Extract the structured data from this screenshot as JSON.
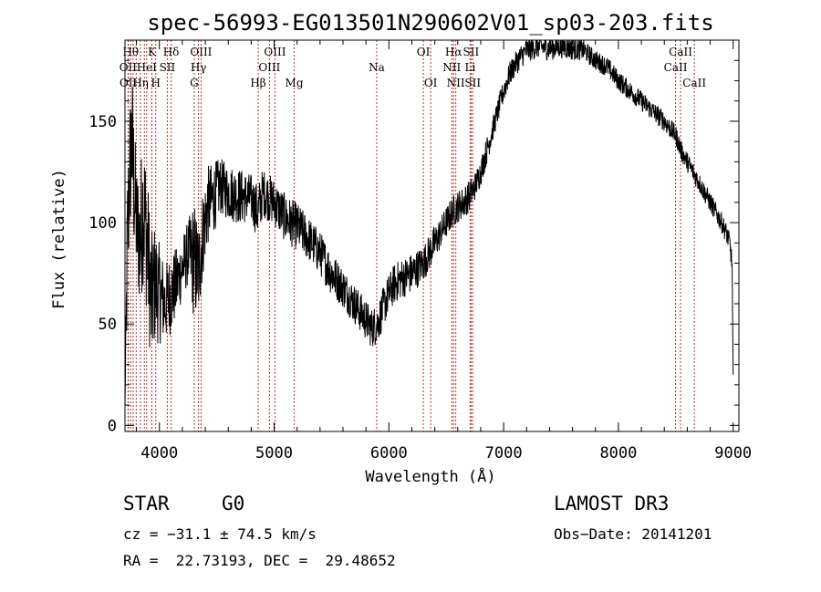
{
  "chart_data": {
    "type": "line",
    "title": "spec-56993-EG013501N290602V01_sp03-203.fits",
    "xlabel": "Wavelength (Å)",
    "ylabel": "Flux (relative)",
    "xlim": [
      3700,
      9050
    ],
    "ylim": [
      -3,
      190
    ],
    "xticks": [
      4000,
      5000,
      6000,
      7000,
      8000,
      9000
    ],
    "yticks": [
      0,
      50,
      100,
      150
    ],
    "xminor_step": 200,
    "yminor_step": 10,
    "series": [
      {
        "name": "flux",
        "x": [
          3700,
          3720,
          3740,
          3760,
          3780,
          3800,
          3830,
          3860,
          3900,
          3930,
          3960,
          4000,
          4050,
          4100,
          4150,
          4200,
          4250,
          4300,
          4340,
          4380,
          4420,
          4470,
          4530,
          4600,
          4700,
          4800,
          4860,
          4900,
          5000,
          5100,
          5200,
          5300,
          5400,
          5500,
          5600,
          5700,
          5800,
          5850,
          5900,
          5950,
          6000,
          6050,
          6100,
          6200,
          6300,
          6350,
          6400,
          6450,
          6500,
          6550,
          6600,
          6650,
          6700,
          6750,
          6800,
          6850,
          6900,
          6950,
          7000,
          7050,
          7100,
          7150,
          7200,
          7250,
          7300,
          7400,
          7500,
          7600,
          7700,
          7800,
          7900,
          8000,
          8100,
          8200,
          8300,
          8400,
          8500,
          8550,
          8600,
          8650,
          8700,
          8750,
          8800,
          8850,
          8900,
          8940,
          8970,
          8990,
          9000
        ],
        "y": [
          10,
          85,
          125,
          140,
          118,
          100,
          90,
          110,
          85,
          60,
          70,
          65,
          60,
          65,
          70,
          78,
          85,
          82,
          75,
          95,
          108,
          112,
          118,
          115,
          113,
          112,
          105,
          115,
          110,
          102,
          98,
          92,
          85,
          75,
          68,
          60,
          52,
          48,
          50,
          58,
          65,
          70,
          72,
          75,
          80,
          85,
          90,
          95,
          100,
          105,
          108,
          110,
          113,
          118,
          125,
          135,
          145,
          155,
          165,
          173,
          178,
          182,
          185,
          186,
          187,
          186,
          187,
          186,
          185,
          180,
          177,
          170,
          165,
          160,
          155,
          150,
          143,
          135,
          130,
          125,
          120,
          115,
          110,
          105,
          100,
          95,
          90,
          80,
          25
        ],
        "noise": [
          0,
          40,
          35,
          40,
          35,
          30,
          35,
          40,
          35,
          35,
          30,
          25,
          20,
          20,
          18,
          16,
          16,
          30,
          25,
          22,
          20,
          18,
          14,
          14,
          14,
          12,
          14,
          12,
          12,
          12,
          12,
          11,
          11,
          11,
          10,
          10,
          10,
          10,
          10,
          10,
          10,
          10,
          10,
          10,
          9,
          9,
          9,
          8,
          8,
          8,
          8,
          8,
          8,
          7,
          7,
          7,
          6,
          6,
          6,
          6,
          6,
          6,
          6,
          6,
          6,
          6,
          6,
          6,
          5,
          5,
          5,
          5,
          5,
          5,
          5,
          5,
          5,
          5,
          5,
          5,
          5,
          5,
          5,
          5,
          5,
          5,
          5,
          5,
          0
        ]
      }
    ],
    "lines": [
      {
        "w": 3727,
        "label": "OII",
        "row": 1
      },
      {
        "w": 3729,
        "label": "OII",
        "row": 2
      },
      {
        "w": 3750,
        "label": "Hθ",
        "row": 0
      },
      {
        "w": 3771,
        "label": "",
        "row": 0
      },
      {
        "w": 3798,
        "label": "",
        "row": 0
      },
      {
        "w": 3835,
        "label": "Hη",
        "row": 2
      },
      {
        "w": 3869,
        "label": "",
        "row": 0
      },
      {
        "w": 3889,
        "label": "HeI",
        "row": 1
      },
      {
        "w": 3934,
        "label": "K",
        "row": 0
      },
      {
        "w": 3968,
        "label": "H",
        "row": 2
      },
      {
        "w": 4069,
        "label": "SII",
        "row": 1
      },
      {
        "w": 4102,
        "label": "Hδ",
        "row": 0
      },
      {
        "w": 4304,
        "label": "G",
        "row": 2
      },
      {
        "w": 4341,
        "label": "Hγ",
        "row": 1
      },
      {
        "w": 4363,
        "label": "OIII",
        "row": 0
      },
      {
        "w": 4861,
        "label": "Hβ",
        "row": 2
      },
      {
        "w": 4959,
        "label": "OIII",
        "row": 1
      },
      {
        "w": 5007,
        "label": "OIII",
        "row": 0
      },
      {
        "w": 5175,
        "label": "Mg",
        "row": 2
      },
      {
        "w": 5894,
        "label": "Na",
        "row": 1
      },
      {
        "w": 6300,
        "label": "OI",
        "row": 0
      },
      {
        "w": 6364,
        "label": "OI",
        "row": 2
      },
      {
        "w": 6548,
        "label": "NII",
        "row": 1
      },
      {
        "w": 6563,
        "label": "Hα",
        "row": 0
      },
      {
        "w": 6583,
        "label": "NII",
        "row": 2
      },
      {
        "w": 6708,
        "label": "Li",
        "row": 1
      },
      {
        "w": 6716,
        "label": "SII",
        "row": 0
      },
      {
        "w": 6731,
        "label": "SII",
        "row": 2
      },
      {
        "w": 8498,
        "label": "CaII",
        "row": 1
      },
      {
        "w": 8542,
        "label": "CaII",
        "row": 0
      },
      {
        "w": 8662,
        "label": "CaII",
        "row": 2
      }
    ]
  },
  "info": {
    "class": "STAR",
    "subclass": "G0",
    "survey": "LAMOST DR3",
    "cz": "cz = −31.1 ± 74.5 km/s",
    "obs_date": "Obs−Date: 20141201",
    "coords": "RA =  22.73193, DEC =  29.48652"
  }
}
